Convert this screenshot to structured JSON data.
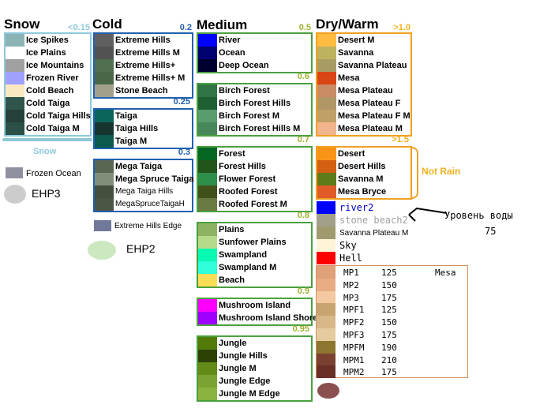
{
  "colors": {
    "snow": "#8fc8dc",
    "cold": "#2060b0",
    "medium": "#4aa040",
    "dry": "#f0a020",
    "oceanicBlue": "#1a1aa0"
  },
  "snow": {
    "title": "Snow",
    "temp": "<0.15",
    "biomes": [
      {
        "name": "Ice Spikes",
        "color": "#8cb4b4"
      },
      {
        "name": "Ice Plains",
        "color": "#ffffff"
      },
      {
        "name": "Ice Mountains",
        "color": "#a0a0a0"
      },
      {
        "name": "Frozen River",
        "color": "#a0a0ff"
      },
      {
        "name": "Cold Beach",
        "color": "#fae8c0"
      },
      {
        "name": "Cold Taiga",
        "color": "#30554a"
      },
      {
        "name": "Cold Taiga Hills",
        "color": "#244038"
      },
      {
        "name": "Cold Taiga M",
        "color": "#2a5048"
      }
    ],
    "caption": "Snow",
    "extra": [
      {
        "name": "Frozen Ocean",
        "color": "#9090a0"
      }
    ],
    "blob_label": "EHP3"
  },
  "cold": {
    "title": "Cold",
    "groups": [
      {
        "temp": "0.2",
        "biomes": [
          {
            "name": "Extreme Hills",
            "color": "#606060"
          },
          {
            "name": "Extreme Hills M",
            "color": "#525252"
          },
          {
            "name": "Extreme Hills+",
            "color": "#507050"
          },
          {
            "name": "Extreme Hills+ M",
            "color": "#4a6848"
          },
          {
            "name": "Stone Beach",
            "color": "#a2a08a"
          }
        ]
      },
      {
        "temp": "0.25",
        "biomes": [
          {
            "name": "Taiga",
            "color": "#0b6659"
          },
          {
            "name": "Taiga Hills",
            "color": "#16352f"
          },
          {
            "name": "Taiga M",
            "color": "#0a5a4e"
          }
        ]
      },
      {
        "temp": "0.3",
        "biomes": [
          {
            "name": "Mega Taiga",
            "color": "#596651"
          },
          {
            "name": "Mega Spruce Taiga",
            "color": "#818e79"
          },
          {
            "name": "Mega Taiga Hills",
            "color": "#454f3e"
          },
          {
            "name": "MegaSpruceTaigaH",
            "color": "#4a5544"
          }
        ]
      }
    ],
    "extra": [
      {
        "name": "Extreme Hills Edge",
        "color": "#72789a"
      }
    ],
    "blob_label": "EHP2"
  },
  "medium": {
    "title": "Medium",
    "groups": [
      {
        "temp": "0.5",
        "biomes": [
          {
            "name": "River",
            "color": "#0000ff"
          },
          {
            "name": "Ocean",
            "color": "#000070"
          },
          {
            "name": "Deep Ocean",
            "color": "#000030"
          }
        ]
      },
      {
        "temp": "0.6",
        "biomes": [
          {
            "name": "Birch Forest",
            "color": "#307444"
          },
          {
            "name": "Birch Forest Hills",
            "color": "#1f5f32"
          },
          {
            "name": "Birch Forest M",
            "color": "#589c6c"
          },
          {
            "name": "Birch Forest Hills M",
            "color": "#47875a"
          }
        ]
      },
      {
        "temp": "0.7",
        "biomes": [
          {
            "name": "Forest",
            "color": "#056621"
          },
          {
            "name": "Forest Hills",
            "color": "#22551c"
          },
          {
            "name": "Flower Forest",
            "color": "#2d8e49"
          },
          {
            "name": "Roofed Forest",
            "color": "#40511a"
          },
          {
            "name": "Roofed Forest M",
            "color": "#687942"
          }
        ]
      },
      {
        "temp": "0.8",
        "biomes": [
          {
            "name": "Plains",
            "color": "#8db360"
          },
          {
            "name": "Sunfower Plains",
            "color": "#b5db88"
          },
          {
            "name": "Swampland",
            "color": "#07f9b2"
          },
          {
            "name": "Swampland M",
            "color": "#2fffda"
          },
          {
            "name": "Beach",
            "color": "#fade55"
          }
        ]
      },
      {
        "temp": "0.9",
        "biomes": [
          {
            "name": "Mushroom Island",
            "color": "#ff00ff"
          },
          {
            "name": "Mushroom Island Shore",
            "color": "#a000ff"
          }
        ]
      },
      {
        "temp": "0.95",
        "biomes": [
          {
            "name": "Jungle",
            "color": "#537b09"
          },
          {
            "name": "Jungle Hills",
            "color": "#2c4205"
          },
          {
            "name": "Jungle M",
            "color": "#628b17"
          },
          {
            "name": "Jungle Edge",
            "color": "#7ba331"
          },
          {
            "name": "Jungle M Edge",
            "color": "#8ab33f"
          }
        ]
      }
    ]
  },
  "dry": {
    "title": "Dry/Warm",
    "groups": [
      {
        "temp": ">1.0",
        "biomes": [
          {
            "name": "Desert M",
            "color": "#ffbc40"
          },
          {
            "name": "Savanna",
            "color": "#bdb25f"
          },
          {
            "name": "Savanna Plateau",
            "color": "#a79d64"
          },
          {
            "name": "Mesa",
            "color": "#d94515"
          },
          {
            "name": "Mesa Plateau",
            "color": "#ca8c65"
          },
          {
            "name": "Mesa Plateau F",
            "color": "#b09765"
          },
          {
            "name": "Mesa Plateau F M",
            "color": "#c1a068"
          },
          {
            "name": "Mesa Plateau M",
            "color": "#f2b48d"
          }
        ]
      },
      {
        "temp": ">1.5",
        "biomes": [
          {
            "name": "Desert",
            "color": "#fa9418"
          },
          {
            "name": "Desert Hills",
            "color": "#d25f12"
          },
          {
            "name": "Savanna M",
            "color": "#5e7b1a"
          },
          {
            "name": "Mesa Bryce",
            "color": "#e05a2a"
          }
        ]
      }
    ],
    "not_rain": "Not Rain",
    "specials": [
      {
        "name": "river2",
        "color": "#0000ff",
        "text_color": "#0000cc"
      },
      {
        "name": "stone beach2",
        "color": "#a2a08a",
        "text_color": "#a0a0a0"
      },
      {
        "name": "Savanna Plateau M",
        "color": "#a09a70",
        "text_color": "#000000"
      },
      {
        "name": "Sky",
        "color": "#fff4d8",
        "text_color": "#000000"
      },
      {
        "name": "Hell",
        "color": "#ff0000",
        "text_color": "#000000"
      }
    ],
    "water_label": "Уровень воды",
    "water_value": "75",
    "mesa_header": "Mesa",
    "mesa_rows": [
      {
        "code": "MP1",
        "value": "125",
        "color": "#e0a078"
      },
      {
        "code": "MP2",
        "value": "150",
        "color": "#e8ac84"
      },
      {
        "code": "MP3",
        "value": "175",
        "color": "#f4c8a0"
      },
      {
        "code": "MPF1",
        "value": "125",
        "color": "#c8a470"
      },
      {
        "code": "MPF2",
        "value": "150",
        "color": "#d8b888"
      },
      {
        "code": "MPF3",
        "value": "175",
        "color": "#e4cca0"
      },
      {
        "code": "MPFM",
        "value": "190",
        "color": "#8c7630"
      },
      {
        "code": "MPM1",
        "value": "210",
        "color": "#7a4030"
      },
      {
        "code": "MPM2",
        "value": "175",
        "color": "#6a3028"
      }
    ]
  }
}
